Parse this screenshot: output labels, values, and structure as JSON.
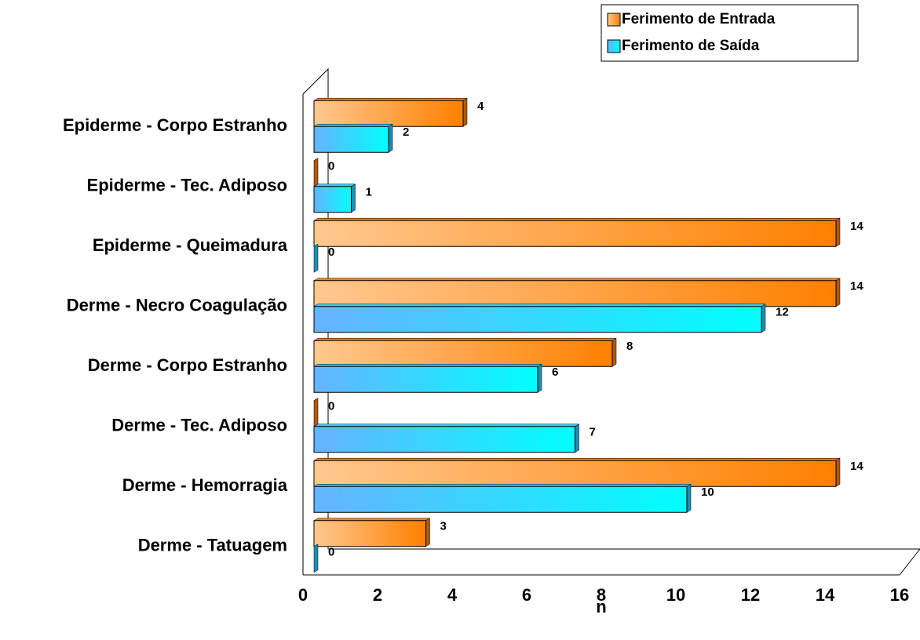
{
  "chart_data": {
    "type": "bar",
    "orientation": "horizontal",
    "categories": [
      "Epiderme - Corpo Estranho",
      "Epiderme - Tec. Adiposo",
      "Epiderme - Queimadura",
      "Derme - Necro Coagulação",
      "Derme - Corpo Estranho",
      "Derme - Tec. Adiposo",
      "Derme - Hemorragia",
      "Derme - Tatuagem"
    ],
    "series": [
      {
        "name": "Ferimento de Entrada",
        "color": "#ff8000",
        "values": [
          4,
          0,
          14,
          14,
          8,
          0,
          14,
          3
        ]
      },
      {
        "name": "Ferimento de Saída",
        "color": "#33ccff",
        "values": [
          2,
          1,
          0,
          12,
          6,
          7,
          10,
          0
        ]
      }
    ],
    "xlabel": "n",
    "xlim": [
      0,
      16
    ],
    "xticks": [
      0,
      2,
      4,
      6,
      8,
      10,
      12,
      14,
      16
    ],
    "legend": "top-right"
  }
}
